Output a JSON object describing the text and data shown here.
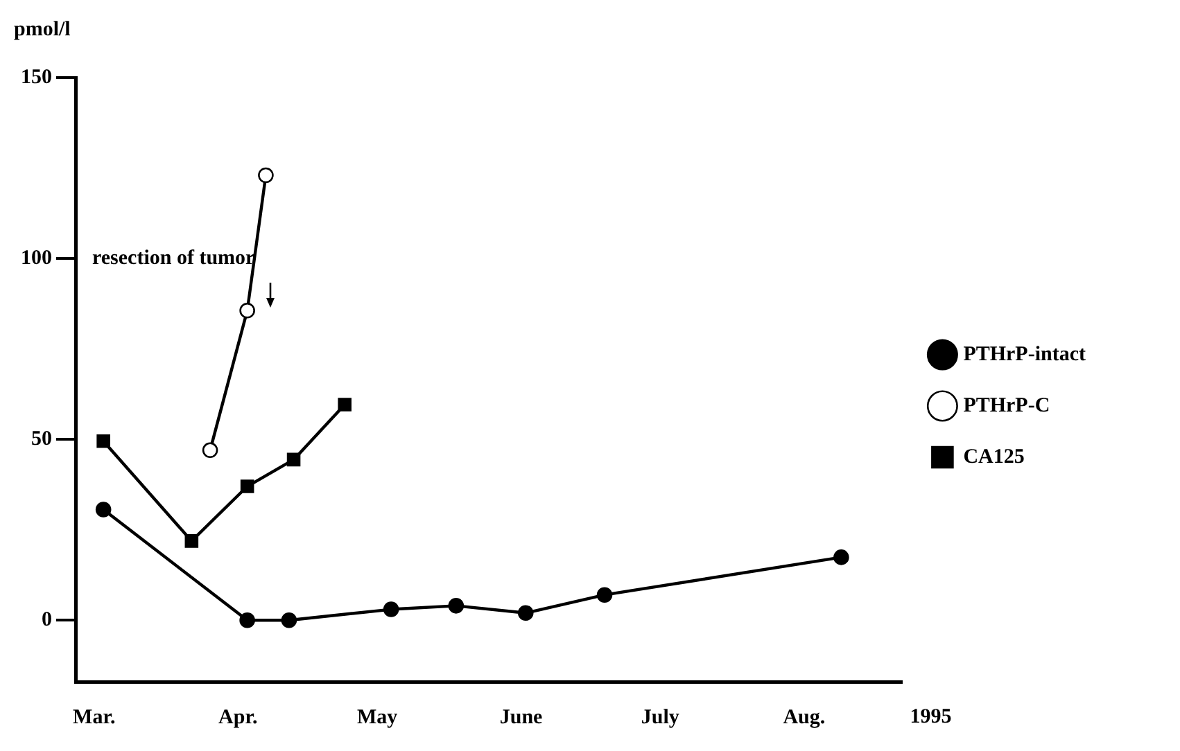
{
  "chart_data": {
    "type": "line",
    "ylabel": "pmol/l",
    "xlim": [
      "1995-02-25",
      "1995-08-22"
    ],
    "ylim": [
      -17,
      150
    ],
    "xticks": [
      {
        "value": "1995-03-01",
        "label": "Mar."
      },
      {
        "value": "1995-04-01",
        "label": "Apr."
      },
      {
        "value": "1995-05-01",
        "label": "May"
      },
      {
        "value": "1995-06-01",
        "label": "June"
      },
      {
        "value": "1995-07-01",
        "label": "July"
      },
      {
        "value": "1995-08-01",
        "label": "Aug."
      }
    ],
    "yticks": [
      0,
      50,
      100,
      150
    ],
    "grid": false,
    "legend": "right",
    "line_style": "solid",
    "series": [
      {
        "name": "PTHrP-intact",
        "color": "#000000",
        "marker": "circle",
        "x": [
          "1995-03-03",
          "1995-04-03",
          "1995-04-12",
          "1995-05-04",
          "1995-05-18",
          "1995-06-02",
          "1995-06-19",
          "1995-08-09"
        ],
        "values": [
          30.6,
          0,
          0,
          3,
          4,
          2,
          7,
          17.4
        ]
      },
      {
        "name": "PTHrP-C",
        "color": "#000000",
        "marker": "circle-open",
        "x": [
          "1995-03-26",
          "1995-04-03",
          "1995-04-07"
        ],
        "values": [
          47,
          85.6,
          123
        ]
      },
      {
        "name": "CA125",
        "color": "#000000",
        "marker": "square",
        "x": [
          "1995-03-03",
          "1995-03-22",
          "1995-04-03",
          "1995-04-13",
          "1995-04-24"
        ],
        "values": [
          49.5,
          21.9,
          37,
          44.4,
          59.6
        ]
      }
    ],
    "annotations": [
      "resection of tumor",
      "1995"
    ]
  }
}
